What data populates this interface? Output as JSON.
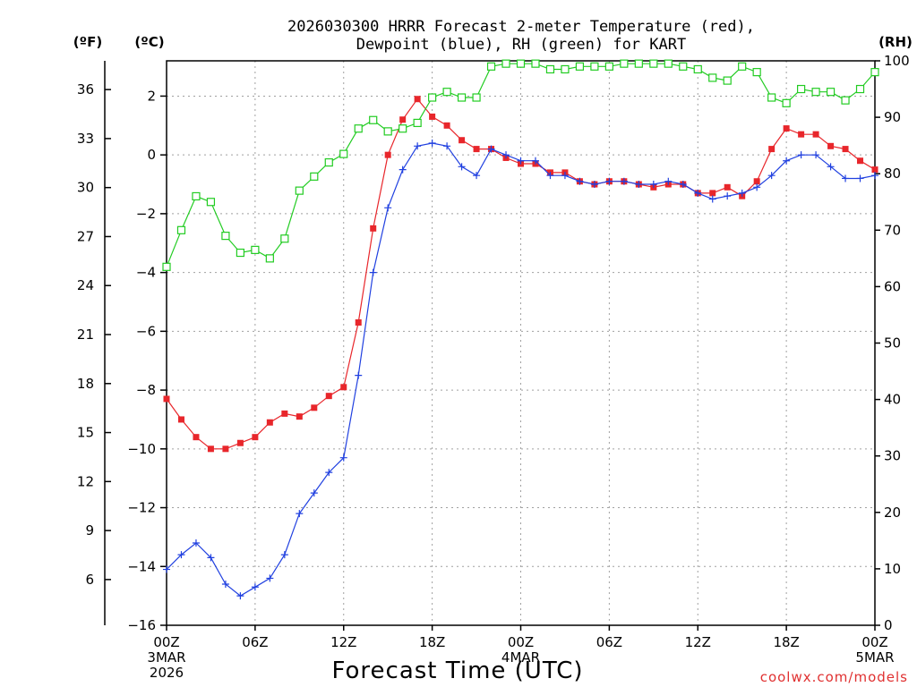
{
  "chart_data": {
    "type": "line",
    "title_line1": "2026030300 HRRR Forecast 2-meter Temperature (red),",
    "title_line2": "Dewpoint (blue), RH (green) for KART",
    "xlabel": "Forecast Time (UTC)",
    "watermark": "coolwx.com/models",
    "left_unit_f": "(ºF)",
    "left_unit_c": "(ºC)",
    "right_unit": "(RH)",
    "x_hours_range": [
      0,
      48
    ],
    "c_range": [
      -16,
      3.2
    ],
    "f_range": [
      3.2,
      37.76
    ],
    "rh_range": [
      0,
      100
    ],
    "x_ticks": [
      {
        "h": 0,
        "label": "00Z",
        "sub1": "3MAR",
        "sub2": "2026"
      },
      {
        "h": 6,
        "label": "06Z"
      },
      {
        "h": 12,
        "label": "12Z"
      },
      {
        "h": 18,
        "label": "18Z"
      },
      {
        "h": 24,
        "label": "00Z",
        "sub1": "4MAR"
      },
      {
        "h": 30,
        "label": "06Z"
      },
      {
        "h": 36,
        "label": "12Z"
      },
      {
        "h": 42,
        "label": "18Z"
      },
      {
        "h": 48,
        "label": "00Z",
        "sub1": "5MAR"
      }
    ],
    "c_ticks": [
      2,
      0,
      -2,
      -4,
      -6,
      -8,
      -10,
      -12,
      -14,
      -16
    ],
    "f_ticks": [
      36,
      33,
      30,
      27,
      24,
      21,
      18,
      15,
      12,
      9,
      6
    ],
    "rh_ticks": [
      100,
      90,
      80,
      70,
      60,
      50,
      40,
      30,
      20,
      10,
      0
    ],
    "series": [
      {
        "name": "Temperature",
        "unit": "C",
        "color": "#e8262b",
        "marker": "filled-square",
        "values": [
          -8.3,
          -9.0,
          -9.6,
          -10.0,
          -10.0,
          -9.8,
          -9.6,
          -9.1,
          -8.8,
          -8.9,
          -8.6,
          -8.2,
          -7.9,
          -5.7,
          -2.5,
          0.0,
          1.2,
          1.9,
          1.3,
          1.0,
          0.5,
          0.2,
          0.2,
          -0.1,
          -0.3,
          -0.3,
          -0.6,
          -0.6,
          -0.9,
          -1.0,
          -0.9,
          -0.9,
          -1.0,
          -1.1,
          -1.0,
          -1.0,
          -1.3,
          -1.3,
          -1.1,
          -1.4,
          -0.9,
          0.2,
          0.9,
          0.7,
          0.7,
          0.3,
          0.2,
          -0.2,
          -0.5
        ]
      },
      {
        "name": "Dewpoint",
        "unit": "C",
        "color": "#2040e0",
        "marker": "plus",
        "values": [
          -14.1,
          -13.6,
          -13.2,
          -13.7,
          -14.6,
          -15.0,
          -14.7,
          -14.4,
          -13.6,
          -12.2,
          -11.5,
          -10.8,
          -10.3,
          -7.5,
          -4.0,
          -1.8,
          -0.5,
          0.3,
          0.4,
          0.3,
          -0.4,
          -0.7,
          0.2,
          0.0,
          -0.2,
          -0.2,
          -0.7,
          -0.7,
          -0.9,
          -1.0,
          -0.9,
          -0.9,
          -1.0,
          -1.0,
          -0.9,
          -1.0,
          -1.3,
          -1.5,
          -1.4,
          -1.3,
          -1.1,
          -0.7,
          -0.2,
          0.0,
          0.0,
          -0.4,
          -0.8,
          -0.8,
          -0.7
        ]
      },
      {
        "name": "RH",
        "unit": "%",
        "color": "#22cc22",
        "marker": "open-square",
        "values": [
          63.5,
          70.0,
          76.0,
          75.0,
          69.0,
          66.0,
          66.5,
          65.0,
          68.5,
          77.0,
          79.5,
          82.0,
          83.5,
          88.0,
          89.5,
          87.5,
          88.0,
          89.0,
          93.5,
          94.5,
          93.5,
          93.5,
          99.0,
          99.5,
          99.5,
          99.5,
          98.5,
          98.5,
          99.0,
          99.0,
          99.0,
          99.5,
          99.5,
          99.5,
          99.5,
          99.0,
          98.5,
          97.0,
          96.5,
          99.0,
          98.0,
          93.5,
          92.5,
          95.0,
          94.5,
          94.5,
          93.0,
          95.0,
          98.0
        ]
      }
    ]
  }
}
